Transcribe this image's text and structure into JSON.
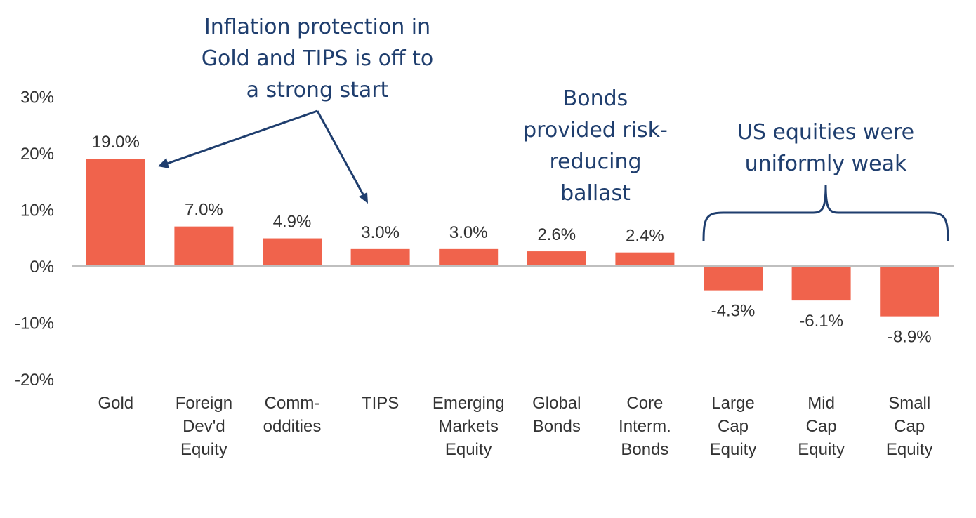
{
  "chart_data": {
    "type": "bar",
    "categories": [
      [
        "Gold"
      ],
      [
        "Foreign",
        "Dev'd",
        "Equity"
      ],
      [
        "Comm-",
        "oddities"
      ],
      [
        "TIPS"
      ],
      [
        "Emerging",
        "Markets",
        "Equity"
      ],
      [
        "Global",
        "Bonds"
      ],
      [
        "Core",
        "Interm.",
        "Bonds"
      ],
      [
        "Large",
        "Cap",
        "Equity"
      ],
      [
        "Mid",
        "Cap",
        "Equity"
      ],
      [
        "Small",
        "Cap",
        "Equity"
      ]
    ],
    "values": [
      19.0,
      7.0,
      4.9,
      3.0,
      3.0,
      2.6,
      2.4,
      -4.3,
      -6.1,
      -8.9
    ],
    "data_labels": [
      "19.0%",
      "7.0%",
      "4.9%",
      "3.0%",
      "3.0%",
      "2.6%",
      "2.4%",
      "-4.3%",
      "-6.1%",
      "-8.9%"
    ],
    "yticks": [
      30,
      20,
      10,
      0,
      -10,
      -20
    ],
    "ytick_labels": [
      "30%",
      "20%",
      "10%",
      "0%",
      "-10%",
      "-20%"
    ],
    "ylim": [
      -20,
      30
    ],
    "grid": false,
    "legend": "none",
    "title": "",
    "xlabel": "",
    "ylabel": ""
  },
  "annotations": [
    {
      "id": "inflation",
      "lines": [
        "Inflation protection in",
        "Gold and TIPS is off to",
        "a strong start"
      ]
    },
    {
      "id": "bonds",
      "lines": [
        "Bonds",
        "provided risk-",
        "reducing",
        "ballast"
      ]
    },
    {
      "id": "us-equities",
      "lines": [
        "US equities were",
        "uniformly weak"
      ]
    }
  ],
  "colors": {
    "bar": "#F0634C",
    "annotation": "#1F3E6E",
    "axis": "#BFBFBF",
    "text": "#333333"
  }
}
